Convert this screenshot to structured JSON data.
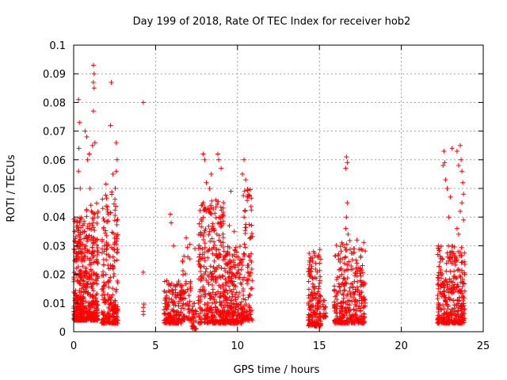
{
  "chart_data": {
    "type": "scatter",
    "title": "Day 199 of 2018, Rate Of TEC Index for receiver hob2",
    "xlabel": "GPS time / hours",
    "ylabel": "ROTI / TECUs",
    "xlim": [
      0,
      25
    ],
    "ylim": [
      0,
      0.1
    ],
    "x_ticks": [
      "0",
      "5",
      "10",
      "15",
      "20",
      "25"
    ],
    "y_ticks": [
      "0",
      "0.01",
      "0.02",
      "0.03",
      "0.04",
      "0.05",
      "0.06",
      "0.07",
      "0.08",
      "0.09",
      "0.1"
    ],
    "grid": true,
    "marker": "+",
    "color": "#ff0000",
    "clusters": [
      {
        "x_range": [
          0.0,
          0.6
        ],
        "y_range": [
          0.004,
          0.04
        ],
        "count": 260
      },
      {
        "x_range": [
          0.6,
          1.5
        ],
        "y_range": [
          0.004,
          0.045
        ],
        "count": 280
      },
      {
        "x_range": [
          1.7,
          2.7
        ],
        "y_range": [
          0.003,
          0.052
        ],
        "count": 240
      },
      {
        "x_range": [
          4.2,
          4.3
        ],
        "y_range": [
          0.006,
          0.026
        ],
        "count": 5
      },
      {
        "x_range": [
          5.5,
          6.6
        ],
        "y_range": [
          0.003,
          0.018
        ],
        "count": 170
      },
      {
        "x_range": [
          6.6,
          7.2
        ],
        "y_range": [
          0.004,
          0.033
        ],
        "count": 60
      },
      {
        "x_range": [
          7.2,
          7.5
        ],
        "y_range": [
          0.001,
          0.01
        ],
        "count": 30
      },
      {
        "x_range": [
          7.6,
          9.2
        ],
        "y_range": [
          0.003,
          0.046
        ],
        "count": 360
      },
      {
        "x_range": [
          9.2,
          10.3
        ],
        "y_range": [
          0.003,
          0.03
        ],
        "count": 240
      },
      {
        "x_range": [
          10.3,
          10.9
        ],
        "y_range": [
          0.004,
          0.05
        ],
        "count": 110
      },
      {
        "x_range": [
          14.3,
          15.1
        ],
        "y_range": [
          0.002,
          0.029
        ],
        "count": 180
      },
      {
        "x_range": [
          15.2,
          15.4
        ],
        "y_range": [
          0.005,
          0.011
        ],
        "count": 20
      },
      {
        "x_range": [
          15.9,
          17.8
        ],
        "y_range": [
          0.003,
          0.032
        ],
        "count": 330
      },
      {
        "x_range": [
          22.2,
          23.9
        ],
        "y_range": [
          0.003,
          0.03
        ],
        "count": 360
      }
    ],
    "outliers": [
      {
        "x": 0.3,
        "y": 0.081
      },
      {
        "x": 0.35,
        "y": 0.073
      },
      {
        "x": 0.32,
        "y": 0.064
      },
      {
        "x": 0.3,
        "y": 0.056
      },
      {
        "x": 0.4,
        "y": 0.05
      },
      {
        "x": 0.7,
        "y": 0.07
      },
      {
        "x": 0.8,
        "y": 0.068
      },
      {
        "x": 0.85,
        "y": 0.06
      },
      {
        "x": 0.95,
        "y": 0.062
      },
      {
        "x": 1.2,
        "y": 0.093
      },
      {
        "x": 1.25,
        "y": 0.09
      },
      {
        "x": 1.2,
        "y": 0.087
      },
      {
        "x": 1.25,
        "y": 0.085
      },
      {
        "x": 1.2,
        "y": 0.077
      },
      {
        "x": 1.15,
        "y": 0.065
      },
      {
        "x": 1.3,
        "y": 0.066
      },
      {
        "x": 1.0,
        "y": 0.05
      },
      {
        "x": 2.3,
        "y": 0.087
      },
      {
        "x": 2.25,
        "y": 0.072
      },
      {
        "x": 2.4,
        "y": 0.055
      },
      {
        "x": 2.6,
        "y": 0.066
      },
      {
        "x": 2.65,
        "y": 0.06
      },
      {
        "x": 2.6,
        "y": 0.056
      },
      {
        "x": 4.25,
        "y": 0.08
      },
      {
        "x": 5.9,
        "y": 0.041
      },
      {
        "x": 5.95,
        "y": 0.038
      },
      {
        "x": 6.1,
        "y": 0.03
      },
      {
        "x": 7.4,
        "y": 0.029
      },
      {
        "x": 7.7,
        "y": 0.027
      },
      {
        "x": 7.9,
        "y": 0.062
      },
      {
        "x": 8.0,
        "y": 0.06
      },
      {
        "x": 8.1,
        "y": 0.052
      },
      {
        "x": 8.4,
        "y": 0.055
      },
      {
        "x": 8.3,
        "y": 0.05
      },
      {
        "x": 8.8,
        "y": 0.062
      },
      {
        "x": 8.85,
        "y": 0.06
      },
      {
        "x": 9.0,
        "y": 0.057
      },
      {
        "x": 9.1,
        "y": 0.041
      },
      {
        "x": 9.6,
        "y": 0.049
      },
      {
        "x": 10.4,
        "y": 0.06
      },
      {
        "x": 10.3,
        "y": 0.055
      },
      {
        "x": 10.5,
        "y": 0.053
      },
      {
        "x": 10.6,
        "y": 0.047
      },
      {
        "x": 10.4,
        "y": 0.04
      },
      {
        "x": 9.5,
        "y": 0.037
      },
      {
        "x": 9.8,
        "y": 0.035
      },
      {
        "x": 16.65,
        "y": 0.061
      },
      {
        "x": 16.7,
        "y": 0.059
      },
      {
        "x": 16.6,
        "y": 0.057
      },
      {
        "x": 16.7,
        "y": 0.045
      },
      {
        "x": 16.65,
        "y": 0.04
      },
      {
        "x": 16.6,
        "y": 0.036
      },
      {
        "x": 16.75,
        "y": 0.034
      },
      {
        "x": 22.6,
        "y": 0.063
      },
      {
        "x": 22.65,
        "y": 0.059
      },
      {
        "x": 22.55,
        "y": 0.058
      },
      {
        "x": 22.7,
        "y": 0.053
      },
      {
        "x": 22.8,
        "y": 0.05
      },
      {
        "x": 23.0,
        "y": 0.047
      },
      {
        "x": 22.9,
        "y": 0.04
      },
      {
        "x": 23.1,
        "y": 0.064
      },
      {
        "x": 23.4,
        "y": 0.063
      },
      {
        "x": 23.5,
        "y": 0.058
      },
      {
        "x": 23.6,
        "y": 0.065
      },
      {
        "x": 23.65,
        "y": 0.06
      },
      {
        "x": 23.7,
        "y": 0.056
      },
      {
        "x": 23.75,
        "y": 0.052
      },
      {
        "x": 23.8,
        "y": 0.048
      },
      {
        "x": 23.7,
        "y": 0.045
      },
      {
        "x": 23.6,
        "y": 0.042
      },
      {
        "x": 23.8,
        "y": 0.039
      },
      {
        "x": 23.4,
        "y": 0.036
      },
      {
        "x": 23.5,
        "y": 0.034
      }
    ]
  }
}
